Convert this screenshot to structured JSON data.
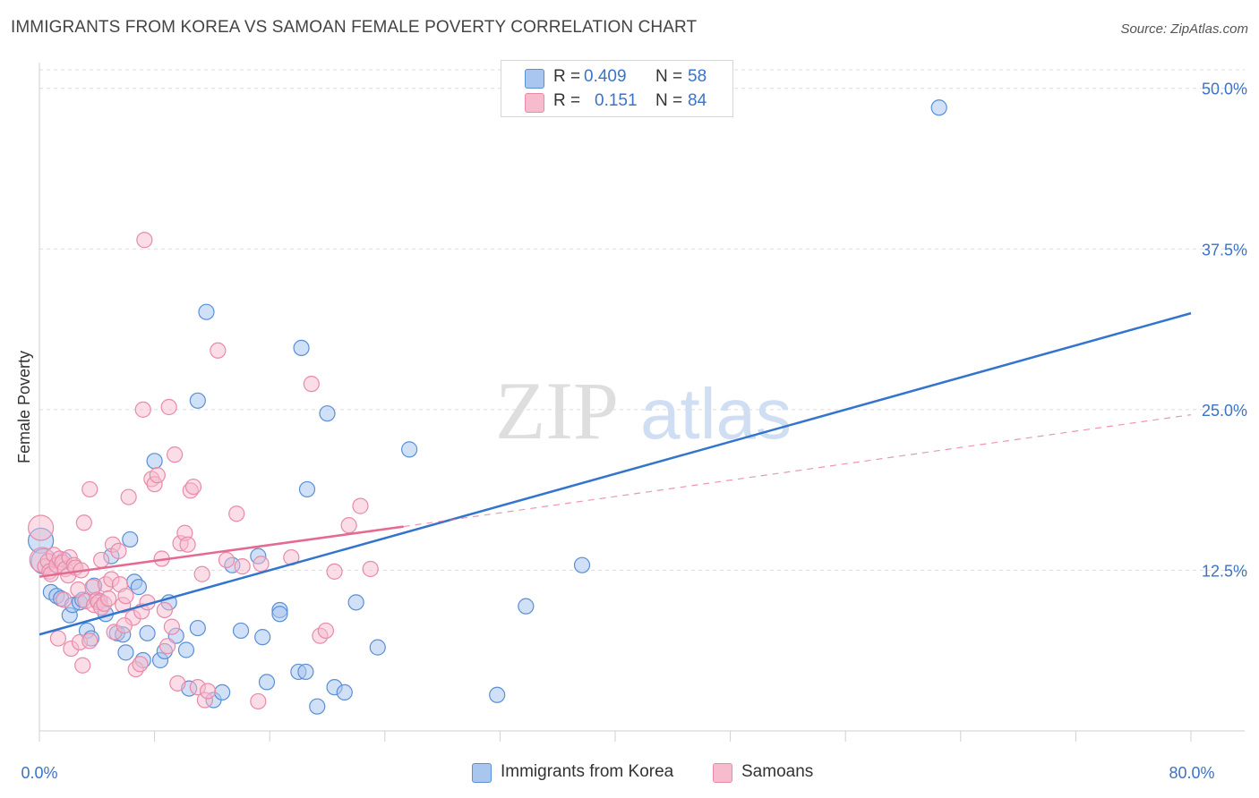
{
  "header": {
    "title": "IMMIGRANTS FROM KOREA VS SAMOAN FEMALE POVERTY CORRELATION CHART",
    "source": "Source: ZipAtlas.com"
  },
  "watermark": {
    "zip": "ZIP",
    "atlas": "atlas"
  },
  "legend": {
    "rows": [
      {
        "r_label": "R =",
        "r_value": "0.409",
        "n_label": "N =",
        "n_value": "58"
      },
      {
        "r_label": "R =",
        "r_value": "0.151",
        "n_label": "N =",
        "n_value": "84"
      }
    ]
  },
  "colors": {
    "korea_fill": "#a9c6ee",
    "korea_stroke": "#5a8fd6",
    "korea_line": "#3374cc",
    "samoa_fill": "#f6bccd",
    "samoa_stroke": "#e98aa8",
    "samoa_line": "#e46a92",
    "axis_text": "#3b73c6",
    "grid": "#dcdcdc"
  },
  "chart_data": {
    "type": "scatter",
    "title": "IMMIGRANTS FROM KOREA VS SAMOAN FEMALE POVERTY CORRELATION CHART",
    "xlabel": "",
    "ylabel": "Female Poverty",
    "xlim": [
      0,
      80
    ],
    "ylim": [
      0,
      52
    ],
    "x_tick_labels": [
      "0.0%",
      "80.0%"
    ],
    "y_ticks": [
      12.5,
      25.0,
      37.5,
      50.0
    ],
    "y_tick_labels": [
      "12.5%",
      "25.0%",
      "37.5%",
      "50.0%"
    ],
    "x_minor_ticks": [
      0,
      8,
      16,
      24,
      32,
      40,
      48,
      56,
      64,
      72,
      80
    ],
    "grid": true,
    "legend_position": "top-center",
    "series": [
      {
        "name": "Immigrants from Korea",
        "R": 0.409,
        "N": 58,
        "trend": {
          "x0": 0,
          "y0": 7.5,
          "x1": 80,
          "y1": 32.5,
          "style": "solid"
        },
        "points": [
          [
            0.1,
            14.8
          ],
          [
            0.3,
            13.2
          ],
          [
            0.8,
            10.8
          ],
          [
            1.2,
            10.5
          ],
          [
            1.5,
            10.3
          ],
          [
            1.7,
            13.3
          ],
          [
            2.1,
            9.0
          ],
          [
            2.3,
            9.8
          ],
          [
            2.8,
            10.0
          ],
          [
            3.0,
            10.2
          ],
          [
            3.3,
            7.8
          ],
          [
            3.6,
            7.2
          ],
          [
            3.8,
            11.3
          ],
          [
            4.2,
            10.1
          ],
          [
            4.6,
            9.1
          ],
          [
            5.0,
            13.6
          ],
          [
            5.4,
            7.6
          ],
          [
            5.8,
            7.5
          ],
          [
            6.0,
            6.1
          ],
          [
            6.3,
            14.9
          ],
          [
            6.6,
            11.6
          ],
          [
            6.9,
            11.2
          ],
          [
            7.2,
            5.5
          ],
          [
            7.5,
            7.6
          ],
          [
            8.0,
            21.0
          ],
          [
            8.4,
            5.5
          ],
          [
            8.7,
            6.2
          ],
          [
            9.0,
            10.0
          ],
          [
            9.5,
            7.4
          ],
          [
            10.2,
            6.3
          ],
          [
            10.4,
            3.3
          ],
          [
            11.0,
            25.7
          ],
          [
            11.6,
            32.6
          ],
          [
            12.1,
            2.4
          ],
          [
            12.7,
            3.0
          ],
          [
            13.4,
            12.9
          ],
          [
            14.0,
            7.8
          ],
          [
            15.2,
            13.6
          ],
          [
            15.5,
            7.3
          ],
          [
            15.8,
            3.8
          ],
          [
            16.7,
            9.4
          ],
          [
            16.7,
            9.1
          ],
          [
            18.0,
            4.6
          ],
          [
            18.5,
            4.6
          ],
          [
            18.2,
            29.8
          ],
          [
            18.6,
            18.8
          ],
          [
            20.0,
            24.7
          ],
          [
            19.3,
            1.9
          ],
          [
            20.5,
            3.4
          ],
          [
            21.2,
            3.0
          ],
          [
            22.0,
            10.0
          ],
          [
            25.7,
            21.9
          ],
          [
            31.8,
            2.8
          ],
          [
            33.8,
            9.7
          ],
          [
            37.7,
            12.9
          ],
          [
            62.5,
            48.5
          ],
          [
            11.0,
            8.0
          ],
          [
            23.5,
            6.5
          ]
        ]
      },
      {
        "name": "Samoans",
        "R": 0.151,
        "N": 84,
        "trend": {
          "x0": 0,
          "y0": 12.0,
          "x1": 25.3,
          "y1": 15.9,
          "style": "solid",
          "ext_x1": 80,
          "ext_y1": 24.6,
          "ext_style": "dashed"
        },
        "points": [
          [
            0.1,
            15.8
          ],
          [
            0.2,
            13.3
          ],
          [
            0.4,
            12.8
          ],
          [
            0.6,
            13.2
          ],
          [
            0.7,
            12.4
          ],
          [
            0.8,
            12.2
          ],
          [
            1.0,
            13.7
          ],
          [
            1.2,
            12.9
          ],
          [
            1.4,
            13.4
          ],
          [
            1.6,
            13.1
          ],
          [
            1.7,
            10.2
          ],
          [
            1.8,
            12.6
          ],
          [
            2.0,
            12.1
          ],
          [
            2.1,
            13.5
          ],
          [
            2.2,
            6.4
          ],
          [
            2.4,
            12.9
          ],
          [
            2.5,
            12.7
          ],
          [
            2.7,
            11.0
          ],
          [
            2.8,
            6.9
          ],
          [
            2.9,
            12.5
          ],
          [
            3.0,
            5.1
          ],
          [
            3.1,
            16.2
          ],
          [
            3.2,
            10.1
          ],
          [
            3.5,
            7.0
          ],
          [
            3.5,
            18.8
          ],
          [
            3.7,
            11.2
          ],
          [
            3.8,
            9.8
          ],
          [
            4.0,
            10.2
          ],
          [
            4.1,
            10.0
          ],
          [
            4.3,
            13.3
          ],
          [
            4.3,
            9.6
          ],
          [
            4.5,
            9.9
          ],
          [
            4.6,
            11.4
          ],
          [
            4.8,
            10.3
          ],
          [
            5.0,
            11.8
          ],
          [
            5.1,
            14.5
          ],
          [
            5.2,
            7.7
          ],
          [
            5.5,
            14.0
          ],
          [
            5.6,
            11.4
          ],
          [
            5.8,
            9.8
          ],
          [
            6.0,
            10.5
          ],
          [
            6.2,
            18.2
          ],
          [
            6.5,
            8.8
          ],
          [
            6.7,
            4.8
          ],
          [
            7.0,
            5.2
          ],
          [
            7.1,
            9.3
          ],
          [
            7.2,
            25.0
          ],
          [
            7.3,
            38.2
          ],
          [
            7.5,
            10.0
          ],
          [
            7.8,
            19.6
          ],
          [
            8.0,
            19.2
          ],
          [
            8.2,
            19.9
          ],
          [
            8.5,
            13.4
          ],
          [
            8.7,
            9.4
          ],
          [
            8.9,
            6.6
          ],
          [
            9.0,
            25.2
          ],
          [
            9.2,
            8.1
          ],
          [
            9.4,
            21.5
          ],
          [
            9.8,
            14.6
          ],
          [
            10.1,
            15.4
          ],
          [
            10.3,
            14.5
          ],
          [
            10.5,
            18.7
          ],
          [
            10.7,
            19.0
          ],
          [
            11.0,
            3.4
          ],
          [
            11.3,
            12.2
          ],
          [
            11.5,
            2.4
          ],
          [
            11.7,
            3.1
          ],
          [
            12.4,
            29.6
          ],
          [
            13.0,
            13.3
          ],
          [
            13.7,
            16.9
          ],
          [
            14.1,
            12.8
          ],
          [
            15.2,
            2.3
          ],
          [
            15.4,
            13.0
          ],
          [
            17.5,
            13.5
          ],
          [
            18.9,
            27.0
          ],
          [
            19.5,
            7.4
          ],
          [
            19.9,
            7.8
          ],
          [
            20.5,
            12.4
          ],
          [
            21.5,
            16.0
          ],
          [
            22.3,
            17.5
          ],
          [
            23.0,
            12.6
          ],
          [
            1.3,
            7.2
          ],
          [
            5.9,
            8.2
          ],
          [
            9.6,
            3.7
          ]
        ]
      }
    ]
  },
  "bottom_legend": [
    {
      "label": "Immigrants from Korea"
    },
    {
      "label": "Samoans"
    }
  ]
}
